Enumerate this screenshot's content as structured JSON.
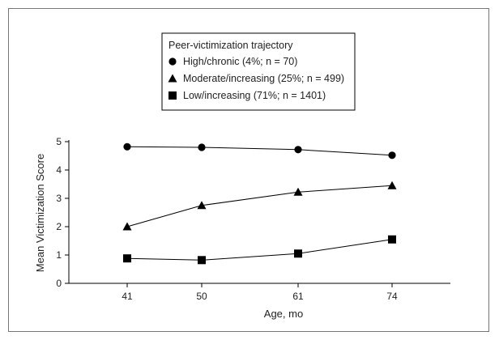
{
  "chart_data": {
    "type": "line",
    "x": [
      41,
      50,
      61,
      74
    ],
    "xticks": [
      "41",
      "50",
      "61",
      "74"
    ],
    "xlabel": "Age, mo",
    "ylabel": "Mean Victimization Score",
    "ylim": [
      0,
      5
    ],
    "yticks": [
      "0",
      "1",
      "2",
      "3",
      "4",
      "5"
    ],
    "legend_title": "Peer-victimization trajectory",
    "legend_position": "top-center",
    "series": [
      {
        "name": "High/chronic (4%; n = 70)",
        "marker": "circle",
        "values": [
          4.82,
          4.8,
          4.72,
          4.52
        ]
      },
      {
        "name": "Moderate/increasing (25%; n = 499)",
        "marker": "triangle",
        "values": [
          2.0,
          2.75,
          3.22,
          3.45
        ]
      },
      {
        "name": "Low/increasing (71%; n = 1401)",
        "marker": "square",
        "values": [
          0.88,
          0.82,
          1.05,
          1.55
        ]
      }
    ],
    "grid": false,
    "colors": {
      "line": "#000000",
      "marker": "#000000"
    }
  }
}
